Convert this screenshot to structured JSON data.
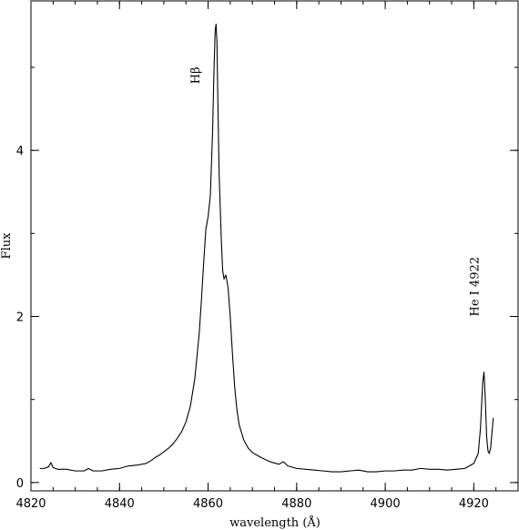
{
  "chart_data": {
    "type": "line",
    "xlabel": "wavelength (Å)",
    "ylabel": "Flux",
    "xlim": [
      4820,
      4930
    ],
    "ylim": [
      -0.1,
      5.8
    ],
    "grid": false,
    "x_ticks_major": [
      4820,
      4840,
      4860,
      4880,
      4900,
      4920
    ],
    "x_tick_labels": [
      "4820",
      "4840",
      "4860",
      "4880",
      "4900",
      "4920"
    ],
    "x_ticks_minor_step": 5,
    "y_ticks_major": [
      0,
      2,
      4
    ],
    "y_tick_labels": [
      "0",
      "2",
      "4"
    ],
    "y_ticks_minor_step": 1,
    "annotations": [
      {
        "text": "Hβ",
        "x": 4857,
        "y": 4.8
      },
      {
        "text": "He I 4922",
        "x": 4920,
        "y": 2.0
      }
    ],
    "series": [
      {
        "x": [
          4822,
          4823,
          4824,
          4824.5,
          4825,
          4826,
          4828,
          4830,
          4832,
          4833,
          4834,
          4836,
          4838,
          4840,
          4842,
          4844,
          4846,
          4847,
          4848,
          4849,
          4850,
          4851,
          4852,
          4853,
          4854,
          4855,
          4856,
          4857,
          4858,
          4858.5,
          4859,
          4859.5,
          4860,
          4860.5,
          4861,
          4861.3,
          4861.6,
          4861.8,
          4862,
          4862.2,
          4862.5,
          4863,
          4863.3,
          4863.6,
          4864,
          4864.5,
          4865,
          4865.5,
          4866,
          4866.5,
          4867,
          4868,
          4869,
          4870,
          4871,
          4872,
          4874,
          4876,
          4877,
          4878,
          4880,
          4882,
          4884,
          4886,
          4888,
          4890,
          4892,
          4894,
          4896,
          4898,
          4900,
          4902,
          4904,
          4906,
          4908,
          4910,
          4912,
          4914,
          4916,
          4918,
          4920,
          4921,
          4921.5,
          4922,
          4922.3,
          4922.6,
          4922.9,
          4923.2,
          4923.5,
          4923.8,
          4924.1,
          4924.4
        ],
        "y": [
          0.17,
          0.17,
          0.19,
          0.24,
          0.18,
          0.16,
          0.16,
          0.14,
          0.14,
          0.17,
          0.14,
          0.14,
          0.16,
          0.17,
          0.2,
          0.21,
          0.23,
          0.26,
          0.3,
          0.33,
          0.37,
          0.41,
          0.46,
          0.53,
          0.61,
          0.73,
          0.92,
          1.25,
          1.8,
          2.2,
          2.65,
          3.05,
          3.2,
          3.45,
          4.2,
          4.9,
          5.45,
          5.52,
          5.3,
          4.6,
          3.7,
          2.9,
          2.55,
          2.45,
          2.5,
          2.35,
          2.0,
          1.55,
          1.15,
          0.88,
          0.7,
          0.52,
          0.42,
          0.36,
          0.33,
          0.3,
          0.25,
          0.22,
          0.25,
          0.2,
          0.17,
          0.16,
          0.15,
          0.14,
          0.13,
          0.13,
          0.14,
          0.15,
          0.13,
          0.13,
          0.14,
          0.14,
          0.15,
          0.15,
          0.17,
          0.16,
          0.16,
          0.15,
          0.16,
          0.17,
          0.23,
          0.35,
          0.65,
          1.2,
          1.33,
          1.0,
          0.55,
          0.38,
          0.35,
          0.42,
          0.6,
          0.78
        ]
      }
    ]
  }
}
